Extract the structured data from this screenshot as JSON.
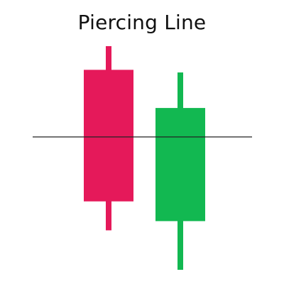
{
  "title": "Piercing Line",
  "colors": {
    "bearish": "#E5195A",
    "bullish": "#12B851",
    "reference_line": "#222222",
    "title": "#111111",
    "background": "#FFFFFF"
  },
  "chart_data": {
    "type": "candlestick",
    "candles": [
      {
        "role": "bearish",
        "open": 100,
        "close": 0,
        "high": 118,
        "low": -22
      },
      {
        "role": "bullish",
        "open": -15,
        "close": 71,
        "high": 98,
        "low": -52
      }
    ],
    "reference_level": 49,
    "grid": false,
    "legend": false
  }
}
